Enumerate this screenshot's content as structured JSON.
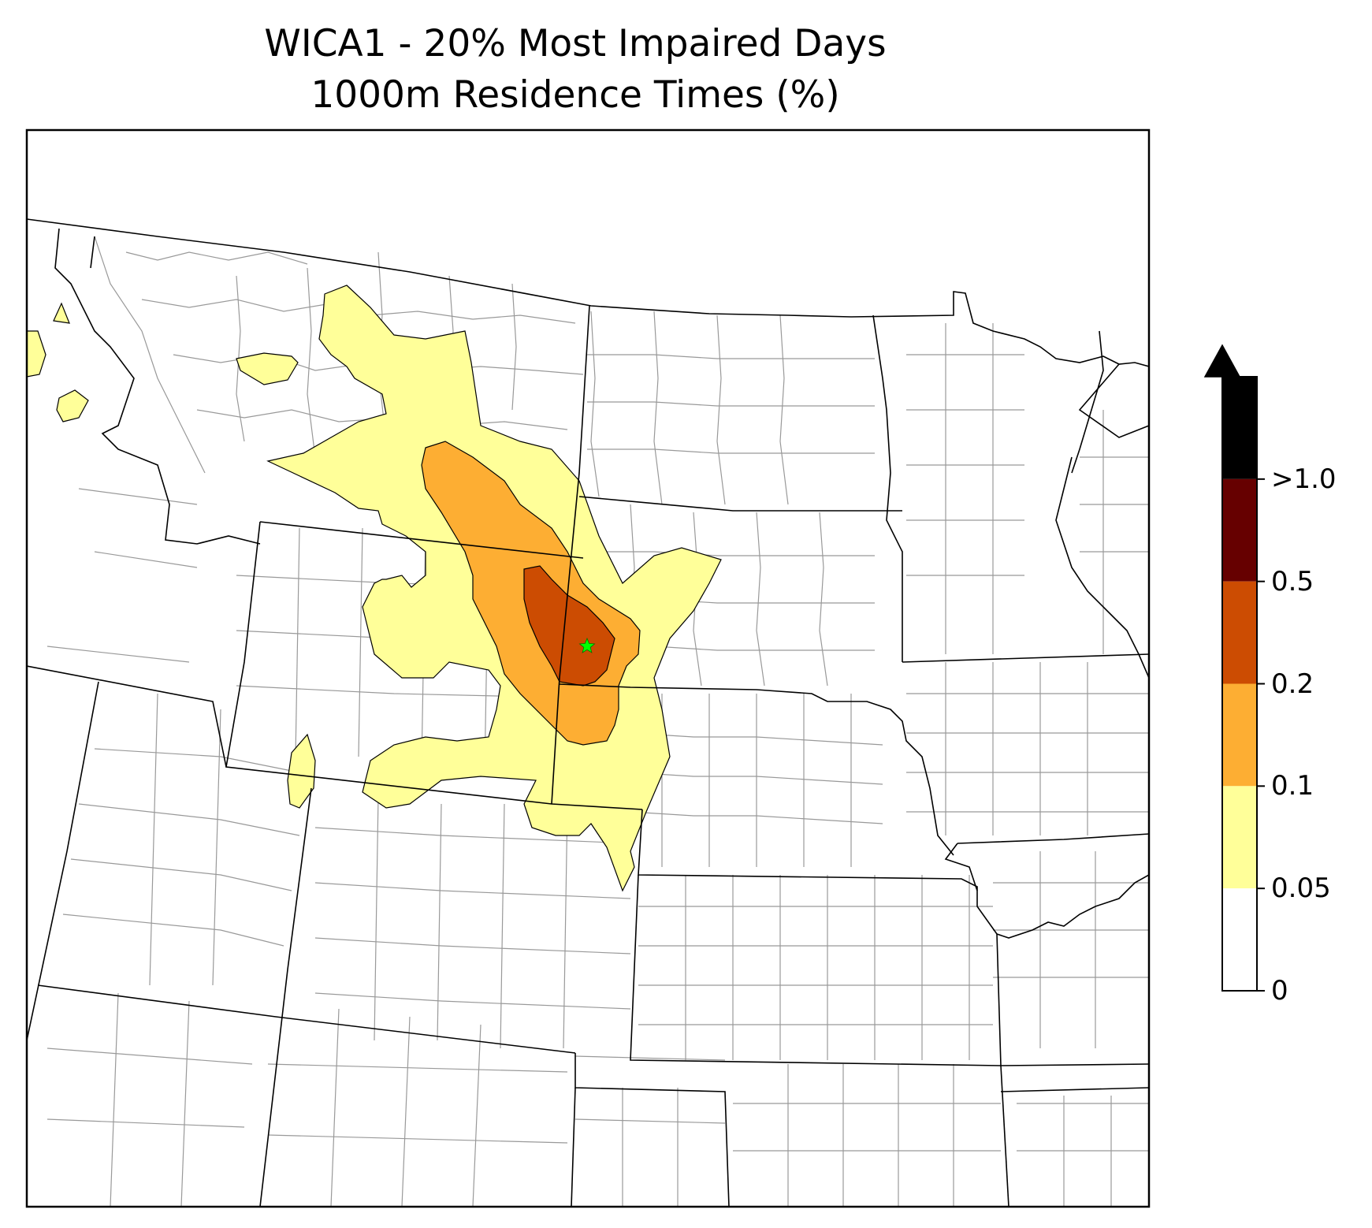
{
  "title": {
    "line1": "WICA1 - 20% Most Impaired Days",
    "line2": "1000m Residence Times (%)"
  },
  "colorbar": {
    "levels": [
      {
        "label": "0",
        "color": "#ffffff"
      },
      {
        "label": "0.05",
        "color": "#ffff99"
      },
      {
        "label": "0.1",
        "color": "#fdae33"
      },
      {
        "label": "0.2",
        "color": "#cc4c02"
      },
      {
        "label": "0.5",
        "color": "#660000"
      },
      {
        "label": ">1.0",
        "color": "#000000"
      }
    ],
    "extend": "max"
  },
  "map": {
    "receptor_marker": {
      "name": "green-star-icon",
      "color": "#00ff00"
    },
    "colors": {
      "state_border": "#000000",
      "county_border": "#999999",
      "contour_edge": "#000000"
    }
  }
}
